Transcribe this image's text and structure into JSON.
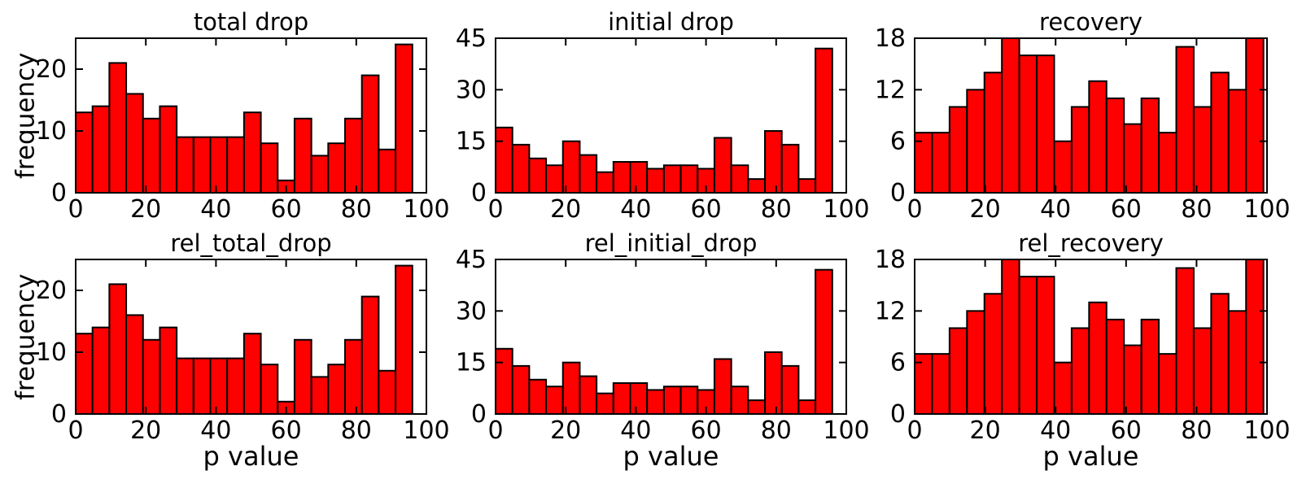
{
  "figure": {
    "description": "2x3 grid of red histograms of p values"
  },
  "style": {
    "bar_fill": "#ff0000",
    "bar_edge": "#000000",
    "axis_color": "#000000",
    "text_color": "#000000",
    "background": "#ffffff"
  },
  "chart_data": [
    {
      "type": "bar",
      "title": "total drop",
      "ylabel": "frequency",
      "xlabel": "",
      "xlim": [
        0,
        100
      ],
      "ylim": [
        0,
        25
      ],
      "x_ticks": [
        0,
        20,
        40,
        60,
        80,
        100
      ],
      "y_ticks": [
        0,
        10,
        20
      ],
      "grid": false,
      "bin_range": [
        0,
        96
      ],
      "values": [
        13,
        14,
        21,
        16,
        12,
        14,
        9,
        9,
        9,
        9,
        13,
        8,
        2,
        12,
        6,
        8,
        12,
        19,
        7,
        24
      ]
    },
    {
      "type": "bar",
      "title": "initial drop",
      "ylabel": "",
      "xlabel": "",
      "xlim": [
        0,
        100
      ],
      "ylim": [
        0,
        45
      ],
      "x_ticks": [
        0,
        20,
        40,
        60,
        80,
        100
      ],
      "y_ticks": [
        0,
        15,
        30,
        45
      ],
      "grid": false,
      "bin_range": [
        0,
        96
      ],
      "values": [
        19,
        14,
        10,
        8,
        15,
        11,
        6,
        9,
        9,
        7,
        8,
        8,
        7,
        16,
        8,
        4,
        18,
        14,
        4,
        42
      ]
    },
    {
      "type": "bar",
      "title": "recovery",
      "ylabel": "",
      "xlabel": "",
      "xlim": [
        0,
        100
      ],
      "ylim": [
        0,
        18
      ],
      "x_ticks": [
        0,
        20,
        40,
        60,
        80,
        100
      ],
      "y_ticks": [
        0,
        6,
        12,
        18
      ],
      "grid": false,
      "bin_range": [
        0,
        99
      ],
      "values": [
        7,
        7,
        10,
        12,
        14,
        18,
        16,
        16,
        6,
        10,
        13,
        11,
        8,
        11,
        7,
        17,
        10,
        14,
        12,
        18
      ]
    },
    {
      "type": "bar",
      "title": "rel_total_drop",
      "ylabel": "frequency",
      "xlabel": "p value",
      "xlim": [
        0,
        100
      ],
      "ylim": [
        0,
        25
      ],
      "x_ticks": [
        0,
        20,
        40,
        60,
        80,
        100
      ],
      "y_ticks": [
        0,
        10,
        20
      ],
      "grid": false,
      "bin_range": [
        0,
        96
      ],
      "values": [
        13,
        14,
        21,
        16,
        12,
        14,
        9,
        9,
        9,
        9,
        13,
        8,
        2,
        12,
        6,
        8,
        12,
        19,
        7,
        24
      ]
    },
    {
      "type": "bar",
      "title": "rel_initial_drop",
      "ylabel": "",
      "xlabel": "p value",
      "xlim": [
        0,
        100
      ],
      "ylim": [
        0,
        45
      ],
      "x_ticks": [
        0,
        20,
        40,
        60,
        80,
        100
      ],
      "y_ticks": [
        0,
        15,
        30,
        45
      ],
      "grid": false,
      "bin_range": [
        0,
        96
      ],
      "values": [
        19,
        14,
        10,
        8,
        15,
        11,
        6,
        9,
        9,
        7,
        8,
        8,
        7,
        16,
        8,
        4,
        18,
        14,
        4,
        42
      ]
    },
    {
      "type": "bar",
      "title": "rel_recovery",
      "ylabel": "",
      "xlabel": "p value",
      "xlim": [
        0,
        100
      ],
      "ylim": [
        0,
        18
      ],
      "x_ticks": [
        0,
        20,
        40,
        60,
        80,
        100
      ],
      "y_ticks": [
        0,
        6,
        12,
        18
      ],
      "grid": false,
      "bin_range": [
        0,
        99
      ],
      "values": [
        7,
        7,
        10,
        12,
        14,
        18,
        16,
        16,
        6,
        10,
        13,
        11,
        8,
        11,
        7,
        17,
        10,
        14,
        12,
        18
      ]
    }
  ]
}
